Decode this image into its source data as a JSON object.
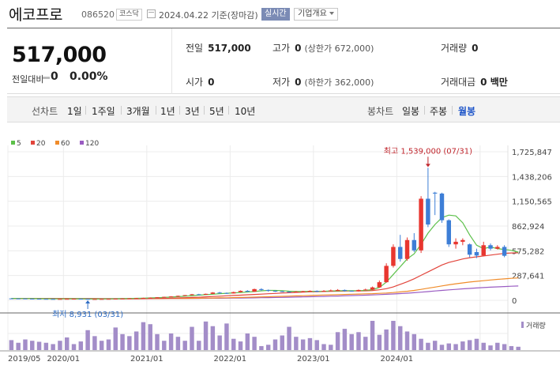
{
  "header": {
    "name": "에코프로",
    "code": "086520",
    "market": "코스닥",
    "date": "2024.04.22",
    "basis": "기준(장마감)",
    "live_label": "실시간",
    "corp_info_label": "기업개요"
  },
  "summary": {
    "price": "517,000",
    "change_label": "전일대비",
    "change_value": "0",
    "change_pct": "0.00%",
    "prev_label": "전일",
    "prev_value": "517,000",
    "high_label": "고가",
    "high_value": "0",
    "high_limit": "(상한가 672,000)",
    "volume_label": "거래량",
    "volume_value": "0",
    "open_label": "시가",
    "open_value": "0",
    "low_label": "저가",
    "low_value": "0",
    "low_limit": "(하한가 362,000)",
    "amount_label": "거래대금",
    "amount_value": "0 백만"
  },
  "period": {
    "line_label": "선차트",
    "line_options": [
      "1일",
      "1주일",
      "3개월",
      "1년",
      "3년",
      "5년",
      "10년"
    ],
    "candle_label": "봉차트",
    "candle_options": [
      "일봉",
      "주봉",
      "월봉"
    ],
    "selected": "월봉"
  },
  "colors": {
    "up": "#e8362f",
    "down": "#3d7ed6",
    "ma5": "#5cc04a",
    "ma20": "#e2453c",
    "ma60": "#f08c2a",
    "ma120": "#9a5cc2",
    "volume": "#a38dc8"
  },
  "chart_data": {
    "type": "candlestick",
    "legend": [
      {
        "name": "5",
        "color": "#5cc04a"
      },
      {
        "name": "20",
        "color": "#e2453c"
      },
      {
        "name": "60",
        "color": "#f08c2a"
      },
      {
        "name": "120",
        "color": "#9a5cc2"
      }
    ],
    "y_ticks": [
      "1,725,847",
      "1,438,206",
      "1,150,565",
      "862,924",
      "575,282",
      "287,641",
      "0"
    ],
    "y_tick_values": [
      1725847,
      1438206,
      1150565,
      862924,
      575282,
      287641,
      0
    ],
    "ylim": [
      0,
      1725847
    ],
    "x_ticks": [
      "2019/05",
      "2020/01",
      "2021/01",
      "2022/01",
      "2023/01",
      "2024/01"
    ],
    "high_annotation": "최고 1,539,000 (07/31)",
    "low_annotation": "최저 8,931 (03/31)",
    "volume_label": "거래량",
    "candles": [
      {
        "o": 22000,
        "c": 21000,
        "h": 23000,
        "l": 20000
      },
      {
        "o": 21000,
        "c": 20500,
        "h": 22000,
        "l": 19500
      },
      {
        "o": 20500,
        "c": 19000,
        "h": 21000,
        "l": 18500
      },
      {
        "o": 19000,
        "c": 18000,
        "h": 19500,
        "l": 17000
      },
      {
        "o": 18000,
        "c": 17000,
        "h": 18500,
        "l": 16000
      },
      {
        "o": 17000,
        "c": 16000,
        "h": 17500,
        "l": 15000
      },
      {
        "o": 16000,
        "c": 15500,
        "h": 16500,
        "l": 14500
      },
      {
        "o": 15500,
        "c": 16000,
        "h": 16500,
        "l": 15000
      },
      {
        "o": 16000,
        "c": 17000,
        "h": 17500,
        "l": 15500
      },
      {
        "o": 17000,
        "c": 18000,
        "h": 18500,
        "l": 16500
      },
      {
        "o": 18000,
        "c": 16500,
        "h": 18500,
        "l": 16000
      },
      {
        "o": 16500,
        "c": 14000,
        "h": 17000,
        "l": 8931
      },
      {
        "o": 14000,
        "c": 15000,
        "h": 15500,
        "l": 13500
      },
      {
        "o": 15000,
        "c": 16000,
        "h": 17000,
        "l": 14500
      },
      {
        "o": 16000,
        "c": 17000,
        "h": 18000,
        "l": 15500
      },
      {
        "o": 17000,
        "c": 19000,
        "h": 20000,
        "l": 16500
      },
      {
        "o": 19000,
        "c": 21000,
        "h": 22000,
        "l": 18500
      },
      {
        "o": 21000,
        "c": 23000,
        "h": 25000,
        "l": 20500
      },
      {
        "o": 23000,
        "c": 25000,
        "h": 27000,
        "l": 22500
      },
      {
        "o": 25000,
        "c": 28000,
        "h": 30000,
        "l": 24000
      },
      {
        "o": 28000,
        "c": 30000,
        "h": 33000,
        "l": 27000
      },
      {
        "o": 30000,
        "c": 35000,
        "h": 37000,
        "l": 29000
      },
      {
        "o": 35000,
        "c": 40000,
        "h": 42000,
        "l": 34000
      },
      {
        "o": 40000,
        "c": 45000,
        "h": 48000,
        "l": 39000
      },
      {
        "o": 45000,
        "c": 52000,
        "h": 55000,
        "l": 44000
      },
      {
        "o": 52000,
        "c": 60000,
        "h": 62000,
        "l": 50000
      },
      {
        "o": 60000,
        "c": 70000,
        "h": 74000,
        "l": 58000
      },
      {
        "o": 70000,
        "c": 65000,
        "h": 75000,
        "l": 60000
      },
      {
        "o": 65000,
        "c": 75000,
        "h": 78000,
        "l": 63000
      },
      {
        "o": 75000,
        "c": 90000,
        "h": 95000,
        "l": 72000
      },
      {
        "o": 90000,
        "c": 85000,
        "h": 98000,
        "l": 80000
      },
      {
        "o": 85000,
        "c": 80000,
        "h": 90000,
        "l": 75000
      },
      {
        "o": 80000,
        "c": 95000,
        "h": 100000,
        "l": 78000
      },
      {
        "o": 95000,
        "c": 110000,
        "h": 115000,
        "l": 92000
      },
      {
        "o": 110000,
        "c": 100000,
        "h": 118000,
        "l": 95000
      },
      {
        "o": 100000,
        "c": 130000,
        "h": 135000,
        "l": 98000
      },
      {
        "o": 130000,
        "c": 120000,
        "h": 140000,
        "l": 110000
      },
      {
        "o": 120000,
        "c": 110000,
        "h": 125000,
        "l": 100000
      },
      {
        "o": 110000,
        "c": 105000,
        "h": 115000,
        "l": 98000
      },
      {
        "o": 105000,
        "c": 100000,
        "h": 110000,
        "l": 95000
      },
      {
        "o": 100000,
        "c": 95000,
        "h": 105000,
        "l": 90000
      },
      {
        "o": 95000,
        "c": 100000,
        "h": 108000,
        "l": 92000
      },
      {
        "o": 100000,
        "c": 105000,
        "h": 110000,
        "l": 98000
      },
      {
        "o": 105000,
        "c": 110000,
        "h": 115000,
        "l": 100000
      },
      {
        "o": 110000,
        "c": 100000,
        "h": 115000,
        "l": 95000
      },
      {
        "o": 100000,
        "c": 110000,
        "h": 118000,
        "l": 98000
      },
      {
        "o": 110000,
        "c": 115000,
        "h": 125000,
        "l": 105000
      },
      {
        "o": 115000,
        "c": 120000,
        "h": 130000,
        "l": 110000
      },
      {
        "o": 120000,
        "c": 110000,
        "h": 125000,
        "l": 100000
      },
      {
        "o": 110000,
        "c": 105000,
        "h": 115000,
        "l": 100000
      },
      {
        "o": 105000,
        "c": 120000,
        "h": 125000,
        "l": 102000
      },
      {
        "o": 120000,
        "c": 125000,
        "h": 135000,
        "l": 115000
      },
      {
        "o": 125000,
        "c": 150000,
        "h": 160000,
        "l": 120000
      },
      {
        "o": 150000,
        "c": 210000,
        "h": 230000,
        "l": 145000
      },
      {
        "o": 210000,
        "c": 400000,
        "h": 430000,
        "l": 205000
      },
      {
        "o": 400000,
        "c": 620000,
        "h": 650000,
        "l": 380000
      },
      {
        "o": 620000,
        "c": 480000,
        "h": 760000,
        "l": 450000
      },
      {
        "o": 480000,
        "c": 700000,
        "h": 730000,
        "l": 460000
      },
      {
        "o": 700000,
        "c": 580000,
        "h": 780000,
        "l": 560000
      },
      {
        "o": 580000,
        "c": 1180000,
        "h": 1210000,
        "l": 550000
      },
      {
        "o": 1180000,
        "c": 880000,
        "h": 1539000,
        "l": 850000
      },
      {
        "o": 1250000,
        "c": 1240000,
        "h": 1260000,
        "l": 990000
      },
      {
        "o": 1240000,
        "c": 930000,
        "h": 1250000,
        "l": 900000
      },
      {
        "o": 930000,
        "c": 650000,
        "h": 940000,
        "l": 620000
      },
      {
        "o": 650000,
        "c": 680000,
        "h": 720000,
        "l": 600000
      },
      {
        "o": 680000,
        "c": 700000,
        "h": 720000,
        "l": 640000
      },
      {
        "o": 650000,
        "c": 530000,
        "h": 660000,
        "l": 500000
      },
      {
        "o": 560000,
        "c": 520000,
        "h": 600000,
        "l": 490000
      },
      {
        "o": 520000,
        "c": 640000,
        "h": 680000,
        "l": 510000
      },
      {
        "o": 640000,
        "c": 600000,
        "h": 660000,
        "l": 580000
      },
      {
        "o": 600000,
        "c": 620000,
        "h": 640000,
        "l": 590000
      },
      {
        "o": 620000,
        "c": 517000,
        "h": 640000,
        "l": 500000
      }
    ],
    "volumes": [
      30,
      22,
      32,
      28,
      25,
      22,
      18,
      28,
      38,
      18,
      26,
      60,
      42,
      28,
      32,
      68,
      48,
      42,
      56,
      84,
      78,
      48,
      28,
      50,
      40,
      28,
      70,
      28,
      86,
      72,
      44,
      80,
      34,
      26,
      50,
      40,
      12,
      16,
      32,
      44,
      70,
      40,
      32,
      36,
      30,
      18,
      16,
      54,
      64,
      48,
      54,
      40,
      88,
      46,
      62,
      88,
      72,
      56,
      48,
      34,
      22,
      28,
      16,
      20,
      18,
      26,
      30,
      34,
      22,
      14,
      22,
      18,
      12,
      10
    ],
    "ma5": [
      22000,
      21000,
      20000,
      19000,
      18000,
      17000,
      16500,
      16500,
      16500,
      17000,
      17000,
      16000,
      16000,
      16000,
      16500,
      17500,
      19000,
      21000,
      23000,
      25000,
      27500,
      30000,
      34000,
      38000,
      42000,
      48000,
      54000,
      60000,
      65000,
      71000,
      77000,
      82000,
      86000,
      90000,
      96000,
      102000,
      110000,
      115000,
      115000,
      112000,
      106000,
      102000,
      102000,
      104000,
      104000,
      105000,
      108000,
      110000,
      112000,
      112000,
      112000,
      115000,
      124000,
      150000,
      210000,
      300000,
      390000,
      480000,
      540000,
      650000,
      780000,
      880000,
      960000,
      990000,
      980000,
      900000,
      760000,
      640000,
      600000,
      620000,
      600000,
      590000,
      580000,
      560000
    ],
    "ma20": [
      22000,
      21500,
      21000,
      20500,
      20000,
      19500,
      19000,
      18500,
      18000,
      17800,
      17500,
      17000,
      16800,
      16500,
      16300,
      16300,
      16500,
      17000,
      17500,
      18500,
      19500,
      21000,
      23000,
      25000,
      27500,
      30000,
      33000,
      36000,
      40000,
      44000,
      48000,
      52000,
      56000,
      60000,
      64000,
      68000,
      72000,
      76000,
      80000,
      84000,
      88000,
      92000,
      95000,
      98000,
      100000,
      102000,
      104000,
      106000,
      107000,
      108000,
      109000,
      110000,
      114000,
      122000,
      135000,
      155000,
      185000,
      215000,
      250000,
      290000,
      330000,
      370000,
      410000,
      440000,
      460000,
      480000,
      495000,
      505000,
      515000,
      525000,
      535000,
      545000,
      550000,
      552000
    ],
    "ma60": [
      22000,
      21800,
      21500,
      21200,
      21000,
      20800,
      20500,
      20200,
      20000,
      19800,
      19500,
      19300,
      19000,
      18800,
      18700,
      18600,
      18600,
      18700,
      18800,
      19000,
      19300,
      19700,
      20200,
      20800,
      21500,
      22300,
      23200,
      24200,
      25400,
      26700,
      28100,
      29600,
      31200,
      33000,
      35000,
      37000,
      39200,
      41500,
      43800,
      46200,
      48700,
      51200,
      53700,
      56200,
      58700,
      61200,
      63700,
      66000,
      68300,
      70500,
      72700,
      75000,
      77500,
      80500,
      84500,
      90000,
      97000,
      105000,
      115000,
      127000,
      140000,
      153000,
      167000,
      180000,
      192000,
      202000,
      212000,
      220000,
      228000,
      236000,
      243000,
      249000,
      255000,
      260000
    ],
    "ma120": [
      22000,
      21900,
      21800,
      21600,
      21500,
      21400,
      21300,
      21200,
      21100,
      21000,
      20900,
      20800,
      20700,
      20600,
      20500,
      20400,
      20300,
      20300,
      20300,
      20300,
      20400,
      20500,
      20700,
      20900,
      21200,
      21500,
      21900,
      22400,
      22900,
      23500,
      24200,
      25000,
      25800,
      26700,
      27700,
      28800,
      30000,
      31300,
      32700,
      34200,
      35800,
      37500,
      39300,
      41200,
      43200,
      45300,
      47500,
      49800,
      52200,
      54700,
      57300,
      60000,
      62800,
      66000,
      69500,
      73500,
      78000,
      83000,
      88500,
      94500,
      101000,
      108000,
      115000,
      121000,
      127000,
      133000,
      138000,
      143000,
      148000,
      152000,
      156000,
      160000,
      163000,
      166000
    ]
  }
}
